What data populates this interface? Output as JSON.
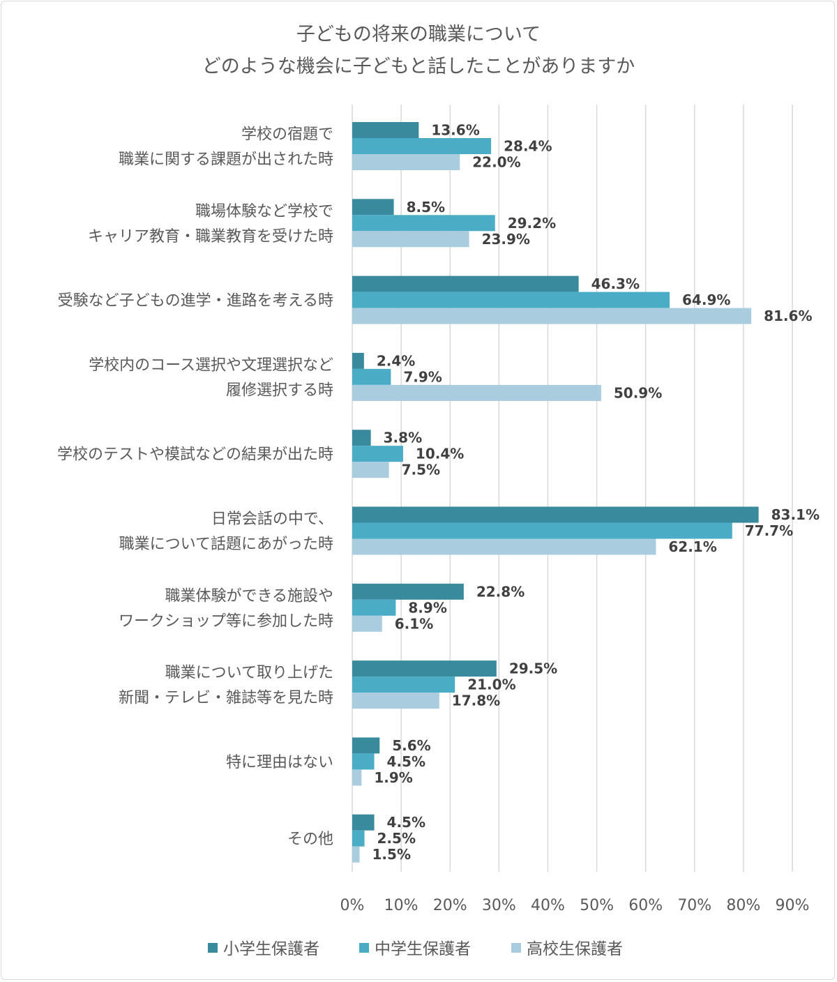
{
  "chart_data": {
    "type": "bar",
    "orientation": "horizontal",
    "title": [
      "子どもの将来の職業について",
      "どのような機会に子どもと話したことがありますか"
    ],
    "categories": [
      [
        "学校の宿題で",
        "職業に関する課題が出された時"
      ],
      [
        "職場体験など学校で",
        "キャリア教育・職業教育を受けた時"
      ],
      [
        "受験など子どもの進学・進路を考える時"
      ],
      [
        "学校内のコース選択や文理選択など",
        "履修選択する時"
      ],
      [
        "学校のテストや模試などの結果が出た時"
      ],
      [
        "日常会話の中で、",
        "職業について話題にあがった時"
      ],
      [
        "職業体験ができる施設や",
        "ワークショップ等に参加した時"
      ],
      [
        "職業について取り上げた",
        "新聞・テレビ・雑誌等を見た時"
      ],
      [
        "特に理由はない"
      ],
      [
        "その他"
      ]
    ],
    "series": [
      {
        "name": "小学生保護者",
        "color": "#3A8A9E",
        "values": [
          13.6,
          8.5,
          46.3,
          2.4,
          3.8,
          83.1,
          22.8,
          29.5,
          5.6,
          4.5
        ]
      },
      {
        "name": "中学生保護者",
        "color": "#4BACC6",
        "values": [
          28.4,
          29.2,
          64.9,
          7.9,
          10.4,
          77.7,
          8.9,
          21.0,
          4.5,
          2.5
        ]
      },
      {
        "name": "高校生保護者",
        "color": "#A9CCDF",
        "values": [
          22.0,
          23.9,
          81.6,
          50.9,
          7.5,
          62.1,
          6.1,
          17.8,
          1.9,
          1.5
        ]
      }
    ],
    "xlim": [
      0,
      90
    ],
    "xticks": [
      "0%",
      "10%",
      "20%",
      "30%",
      "40%",
      "50%",
      "60%",
      "70%",
      "80%",
      "90%"
    ],
    "grid": true,
    "legend_position": "bottom",
    "data_label_suffix": "%"
  }
}
